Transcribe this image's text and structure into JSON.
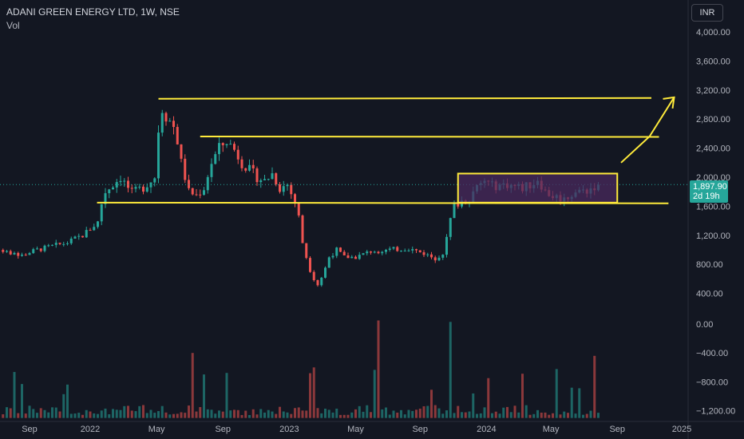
{
  "header": {
    "title": "ADANI GREEN ENERGY LTD, 1W, NSE",
    "indicator": "Vol",
    "currency": "INR"
  },
  "price_tag": {
    "price": "1,897.90",
    "countdown": "2d 19h"
  },
  "colors": {
    "up": "#26a69a",
    "down": "#ef5350",
    "background": "#131722",
    "annotation": "#ffeb3b",
    "box_fill": "#4a2a5e"
  },
  "chart_data": {
    "type": "candlestick",
    "price_axis": {
      "ticks": [
        4000,
        3600,
        3200,
        2800,
        2400,
        2000,
        1600,
        1200,
        800,
        400
      ],
      "labels": [
        "4,000.00",
        "3,600.00",
        "3,200.00",
        "2,800.00",
        "2,400.00",
        "2,000.00",
        "1,600.00",
        "1,200.00",
        "800.00",
        "400.00"
      ]
    },
    "volume_axis": {
      "ticks": [
        0,
        -400,
        -800,
        -1200
      ],
      "labels": [
        "0.00",
        "−400.00",
        "−800.00",
        "−1,200.00"
      ]
    },
    "time_axis": {
      "ticks": [
        {
          "label": "Sep",
          "t": 0.0
        },
        {
          "label": "2022",
          "t": 16.0
        },
        {
          "label": "May",
          "t": 33.5
        },
        {
          "label": "Sep",
          "t": 51.0
        },
        {
          "label": "2023",
          "t": 68.5
        },
        {
          "label": "May",
          "t": 86.0
        },
        {
          "label": "Sep",
          "t": 103.0
        },
        {
          "label": "2024",
          "t": 120.5
        },
        {
          "label": "May",
          "t": 137.5
        },
        {
          "label": "Sep",
          "t": 155.0
        },
        {
          "label": "2025",
          "t": 172.0
        }
      ]
    },
    "anchors": [
      [
        -8,
        1000
      ],
      [
        -2,
        930
      ],
      [
        2,
        1000
      ],
      [
        6,
        1050
      ],
      [
        10,
        1100
      ],
      [
        14,
        1200
      ],
      [
        18,
        1380
      ],
      [
        19,
        1640
      ],
      [
        20,
        1800
      ],
      [
        24,
        2000
      ],
      [
        27,
        1780
      ],
      [
        30,
        1860
      ],
      [
        33,
        2000
      ],
      [
        34,
        2650
      ],
      [
        35,
        2950
      ],
      [
        36,
        2850
      ],
      [
        38,
        2700
      ],
      [
        39,
        2500
      ],
      [
        40,
        2200
      ],
      [
        42,
        1800
      ],
      [
        44,
        1750
      ],
      [
        46,
        1850
      ],
      [
        48,
        2200
      ],
      [
        50,
        2400
      ],
      [
        52,
        2500
      ],
      [
        54,
        2380
      ],
      [
        56,
        2200
      ],
      [
        58,
        2100
      ],
      [
        60,
        2000
      ],
      [
        62,
        1950
      ],
      [
        64,
        2050
      ],
      [
        66,
        1850
      ],
      [
        68,
        1900
      ],
      [
        70,
        1650
      ],
      [
        71,
        1450
      ],
      [
        72,
        1100
      ],
      [
        73,
        900
      ],
      [
        74,
        720
      ],
      [
        75,
        600
      ],
      [
        76,
        520
      ],
      [
        77,
        620
      ],
      [
        78,
        750
      ],
      [
        79,
        900
      ],
      [
        81,
        1000
      ],
      [
        83,
        900
      ],
      [
        86,
        900
      ],
      [
        90,
        980
      ],
      [
        95,
        1000
      ],
      [
        100,
        1020
      ],
      [
        104,
        950
      ],
      [
        107,
        880
      ],
      [
        109,
        960
      ],
      [
        110,
        1150
      ],
      [
        111,
        1420
      ],
      [
        112,
        1600
      ],
      [
        114,
        1680
      ],
      [
        116,
        1720
      ],
      [
        118,
        1850
      ],
      [
        120,
        1950
      ],
      [
        122,
        1880
      ],
      [
        126,
        1900
      ],
      [
        130,
        1850
      ],
      [
        133,
        1920
      ],
      [
        134,
        1980
      ],
      [
        136,
        1800
      ],
      [
        138,
        1740
      ],
      [
        141,
        1700
      ],
      [
        144,
        1800
      ],
      [
        147,
        1820
      ],
      [
        150,
        1900
      ]
    ],
    "horizontal_levels": [
      {
        "x1": 34.0,
        "x2": 164.0,
        "y1": 3080,
        "y2": 3090
      },
      {
        "x1": 45.0,
        "x2": 166.0,
        "y1": 2560,
        "y2": 2555
      },
      {
        "x1": 17.8,
        "x2": 168.5,
        "y1": 1650,
        "y2": 1640
      }
    ],
    "consolidation_box": {
      "x1": 113.0,
      "x2": 155.0,
      "y1": 2050,
      "y2": 1650
    },
    "breakout_arrow": [
      [
        156.0,
        2200
      ],
      [
        163.5,
        2560
      ],
      [
        170.0,
        3100
      ]
    ],
    "last_price": 1897.9
  }
}
